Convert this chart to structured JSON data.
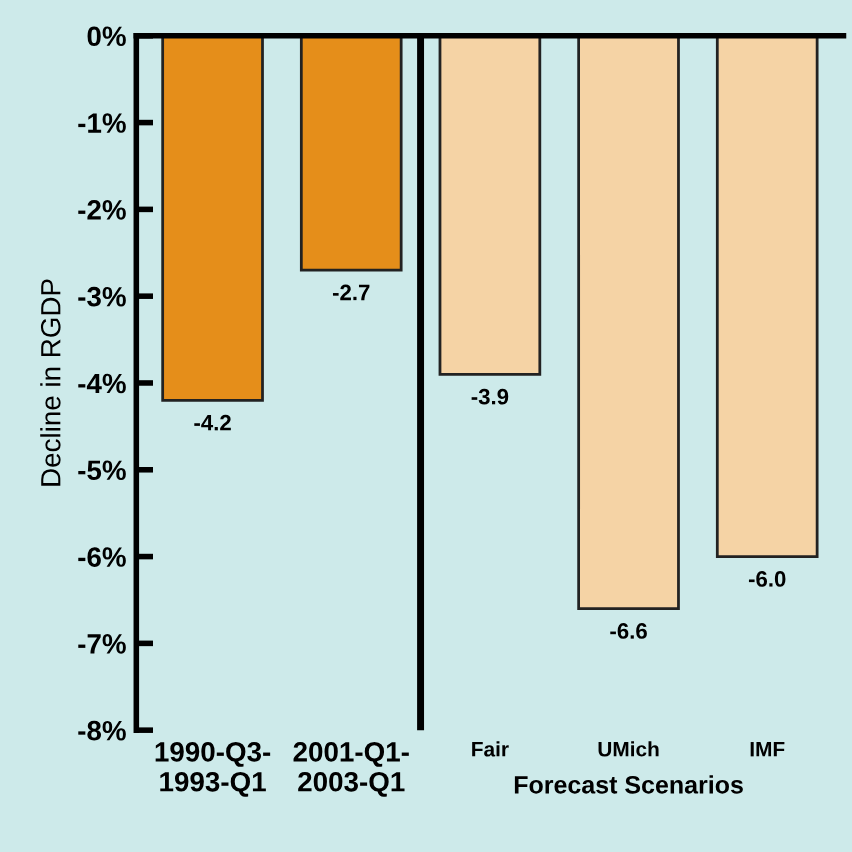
{
  "chart_data": {
    "type": "bar",
    "categories": [
      "1990-Q3-\n1993-Q1",
      "2001-Q1-\n2003-Q1",
      "Fair",
      "UMich",
      "IMF"
    ],
    "values": [
      -4.2,
      -2.7,
      -3.9,
      -6.6,
      -6.0
    ],
    "value_labels": [
      "-4.2",
      "-2.7",
      "-3.9",
      "-6.6",
      "-6.0"
    ],
    "colors": [
      "#e58e1a",
      "#e58e1a",
      "#f5d3a5",
      "#f5d3a5",
      "#f5d3a5"
    ],
    "ylabel": "Decline in RGDP",
    "xlabel": "Forecast Scenarios",
    "ylim": [
      -8,
      0
    ],
    "yticks": [
      {
        "value": 0,
        "label": "0%"
      },
      {
        "value": -1,
        "label": "-1%"
      },
      {
        "value": -2,
        "label": "-2%"
      },
      {
        "value": -3,
        "label": "-3%"
      },
      {
        "value": -4,
        "label": "-4%"
      },
      {
        "value": -5,
        "label": "-5%"
      },
      {
        "value": -6,
        "label": "-6%"
      },
      {
        "value": -7,
        "label": "-7%"
      },
      {
        "value": -8,
        "label": "-8%"
      }
    ],
    "grid": false,
    "legend": false
  }
}
